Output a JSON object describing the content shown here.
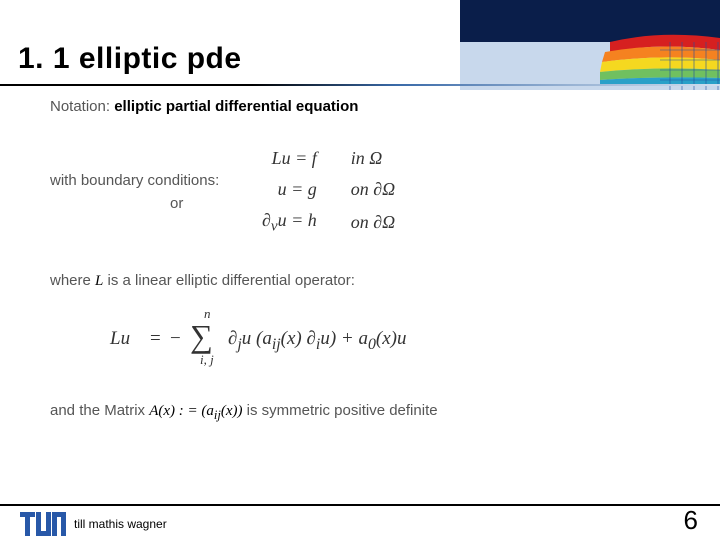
{
  "title": "1. 1 elliptic pde",
  "notation": {
    "label": "Notation:",
    "text": "elliptic partial differential equation"
  },
  "bc": {
    "line1": "with boundary conditions:",
    "line2": "or"
  },
  "eqs": {
    "r1l": "Lu = f",
    "r1r": "in Ω",
    "r2l": "u = g",
    "r2r": "on ∂Ω",
    "r3l": "∂",
    "r3sub": "ν",
    "r3l2": "u = h",
    "r3r": "on ∂Ω"
  },
  "where": {
    "pre": "where ",
    "L": "L",
    "post": " is a linear elliptic differential operator:"
  },
  "operator": {
    "lhs": "Lu",
    "sum_top": "n",
    "sum_bot": "i, j",
    "inner": "∂<sub>j</sub>u (a<sub>ij</sub>(x) ∂<sub>i</sub>u) + a<sub>0</sub>(x)u"
  },
  "matrix": {
    "pre": "and the Matrix ",
    "A": "A(x) : = (a",
    "sub": "ij",
    "post1": "(x))",
    "post2": " is symmetric positive definite"
  },
  "footer": {
    "author": "till mathis wagner",
    "page": "6"
  },
  "deco": {
    "bg_top": "#0a1e4a",
    "contour_colors": [
      "#d62020",
      "#f58220",
      "#f5d820",
      "#70c060",
      "#2aa0c8",
      "#1560b8"
    ],
    "grid_color": "#2050a0"
  }
}
